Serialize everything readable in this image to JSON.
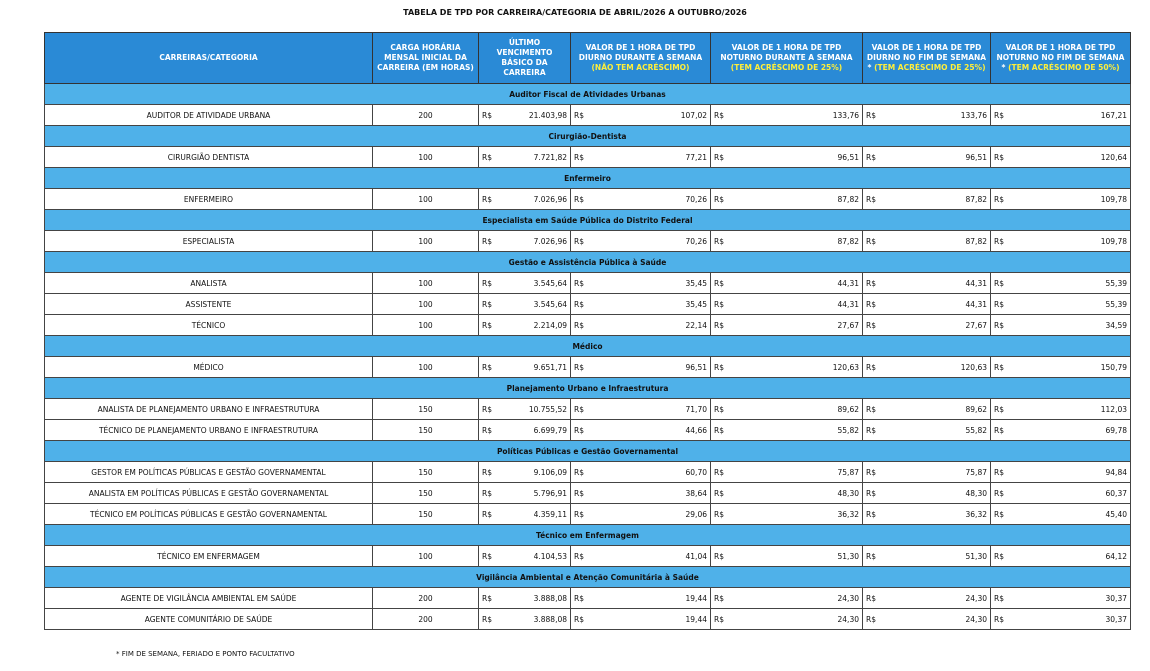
{
  "title": "TABELA DE TPD POR CARREIRA/CATEGORIA DE ABRIL/2026 A OUTUBRO/2026",
  "currency": "R$",
  "columns": [
    {
      "text": "CARREIRAS/CATEGORIA"
    },
    {
      "text": "CARGA HORÁRIA MENSAL INICIAL DA CARREIRA (EM HORAS)"
    },
    {
      "text": "ÚLTIMO VENCIMENTO BÁSICO DA CARREIRA"
    },
    {
      "text": "VALOR DE 1 HORA DE TPD DIURNO DURANTE A SEMANA",
      "highlight": "(NÃO TEM ACRÉSCIMO)"
    },
    {
      "text": "VALOR DE 1 HORA DE TPD NOTURNO DURANTE A SEMANA",
      "highlight": "(TEM ACRÉSCIMO DE 25%)"
    },
    {
      "text": "VALOR DE 1 HORA DE TPD DIURNO NO FIM DE SEMANA *",
      "highlight": "(TEM ACRÉSCIMO DE 25%)"
    },
    {
      "text": "VALOR DE 1 HORA DE TPD NOTURNO NO FIM DE SEMANA *",
      "highlight": "(TEM ACRÉSCIMO DE 50%)"
    }
  ],
  "groups": [
    {
      "name": "Auditor Fiscal de Atividades Urbanas",
      "rows": [
        [
          "AUDITOR DE ATIVIDADE URBANA",
          "200",
          "21.403,98",
          "107,02",
          "133,76",
          "133,76",
          "167,21"
        ]
      ]
    },
    {
      "name": "Cirurgião-Dentista",
      "rows": [
        [
          "CIRURGIÃO DENTISTA",
          "100",
          "7.721,82",
          "77,21",
          "96,51",
          "96,51",
          "120,64"
        ]
      ]
    },
    {
      "name": "Enfermeiro",
      "rows": [
        [
          "ENFERMEIRO",
          "100",
          "7.026,96",
          "70,26",
          "87,82",
          "87,82",
          "109,78"
        ]
      ]
    },
    {
      "name": "Especialista em Saúde Pública do Distrito Federal",
      "rows": [
        [
          "ESPECIALISTA",
          "100",
          "7.026,96",
          "70,26",
          "87,82",
          "87,82",
          "109,78"
        ]
      ]
    },
    {
      "name": "Gestão e Assistência Pública à Saúde",
      "rows": [
        [
          "ANALISTA",
          "100",
          "3.545,64",
          "35,45",
          "44,31",
          "44,31",
          "55,39"
        ],
        [
          "ASSISTENTE",
          "100",
          "3.545,64",
          "35,45",
          "44,31",
          "44,31",
          "55,39"
        ],
        [
          "TÉCNICO",
          "100",
          "2.214,09",
          "22,14",
          "27,67",
          "27,67",
          "34,59"
        ]
      ]
    },
    {
      "name": "Médico",
      "rows": [
        [
          "MÉDICO",
          "100",
          "9.651,71",
          "96,51",
          "120,63",
          "120,63",
          "150,79"
        ]
      ]
    },
    {
      "name": "Planejamento Urbano e Infraestrutura",
      "rows": [
        [
          "ANALISTA DE PLANEJAMENTO URBANO E INFRAESTRUTURA",
          "150",
          "10.755,52",
          "71,70",
          "89,62",
          "89,62",
          "112,03"
        ],
        [
          "TÉCNICO DE PLANEJAMENTO URBANO E INFRAESTRUTURA",
          "150",
          "6.699,79",
          "44,66",
          "55,82",
          "55,82",
          "69,78"
        ]
      ]
    },
    {
      "name": "Políticas Públicas e Gestão Governamental",
      "rows": [
        [
          "GESTOR EM POLÍTICAS PÚBLICAS E GESTÃO GOVERNAMENTAL",
          "150",
          "9.106,09",
          "60,70",
          "75,87",
          "75,87",
          "94,84"
        ],
        [
          "ANALISTA EM POLÍTICAS PÚBLICAS E GESTÃO GOVERNAMENTAL",
          "150",
          "5.796,91",
          "38,64",
          "48,30",
          "48,30",
          "60,37"
        ],
        [
          "TÉCNICO EM POLÍTICAS PÚBLICAS E GESTÃO GOVERNAMENTAL",
          "150",
          "4.359,11",
          "29,06",
          "36,32",
          "36,32",
          "45,40"
        ]
      ]
    },
    {
      "name": "Técnico em Enfermagem",
      "rows": [
        [
          "TÉCNICO EM ENFERMAGEM",
          "100",
          "4.104,53",
          "41,04",
          "51,30",
          "51,30",
          "64,12"
        ]
      ]
    },
    {
      "name": "Vigilância Ambiental e Atenção Comunitária à Saúde",
      "rows": [
        [
          "AGENTE DE VIGILÂNCIA AMBIENTAL EM SAÚDE",
          "200",
          "3.888,08",
          "19,44",
          "24,30",
          "24,30",
          "30,37"
        ],
        [
          "AGENTE COMUNITÁRIO DE SAÚDE",
          "200",
          "3.888,08",
          "19,44",
          "24,30",
          "24,30",
          "30,37"
        ]
      ]
    }
  ],
  "footnote": "* FIM DE SEMANA, FERIADO E PONTO FACULTATIVO"
}
